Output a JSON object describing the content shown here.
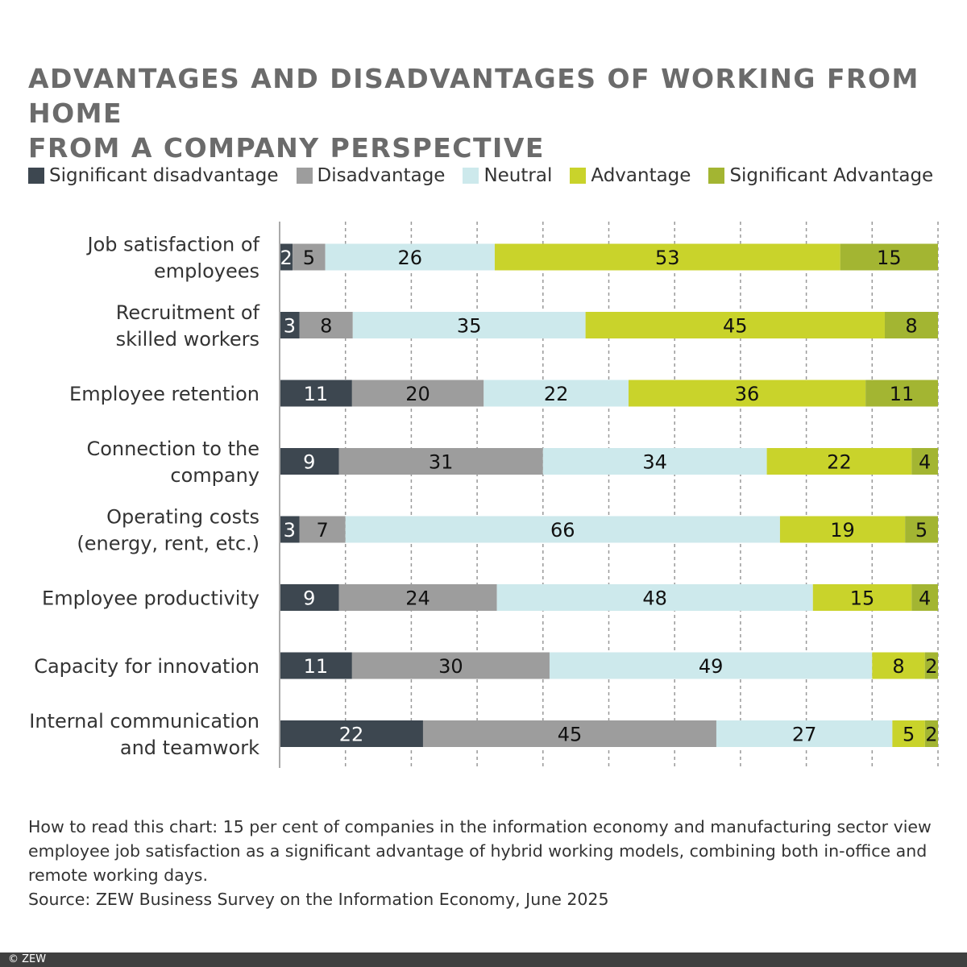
{
  "title_lines": [
    "ADVANTAGES AND DISADVANTAGES OF WORKING FROM HOME",
    "FROM A COMPANY PERSPECTIVE"
  ],
  "chart_data": {
    "type": "bar",
    "orientation": "horizontal-stacked-100",
    "title": "ADVANTAGES AND DISADVANTAGES OF WORKING FROM HOME FROM A COMPANY PERSPECTIVE",
    "categories": [
      [
        "Job satisfaction of",
        "employees"
      ],
      [
        "Recruitment of",
        "skilled workers"
      ],
      [
        "Employee retention"
      ],
      [
        "Connection to the",
        "company"
      ],
      [
        "Operating costs",
        "(energy, rent, etc.)"
      ],
      [
        "Employee productivity"
      ],
      [
        "Capacity for innovation"
      ],
      [
        "Internal communication",
        "and teamwork"
      ]
    ],
    "series": [
      {
        "name": "Significant disadvantage",
        "color": "#3d4750",
        "values": [
          2,
          3,
          11,
          9,
          3,
          9,
          11,
          22
        ]
      },
      {
        "name": "Disadvantage",
        "color": "#9d9d9d",
        "values": [
          5,
          8,
          20,
          31,
          7,
          24,
          30,
          45
        ]
      },
      {
        "name": "Neutral",
        "color": "#cde9ec",
        "values": [
          26,
          35,
          22,
          34,
          66,
          48,
          49,
          27
        ]
      },
      {
        "name": "Advantage",
        "color": "#c9d32b",
        "values": [
          53,
          45,
          36,
          22,
          19,
          15,
          8,
          5
        ]
      },
      {
        "name": "Significant Advantage",
        "color": "#a3b532",
        "values": [
          15,
          8,
          11,
          4,
          5,
          4,
          2,
          2
        ]
      }
    ],
    "xlim": [
      0,
      100
    ],
    "grid": true,
    "legend": "top"
  },
  "note": "How to read this chart: 15 per cent of companies in the information economy and manufacturing sector view employee job satisfaction as a significant advantage of hybrid working models, combining both in-office and remote working days.",
  "source": "Source: ZEW Business Survey on the Information Economy, June 2025",
  "footer": "© ZEW"
}
